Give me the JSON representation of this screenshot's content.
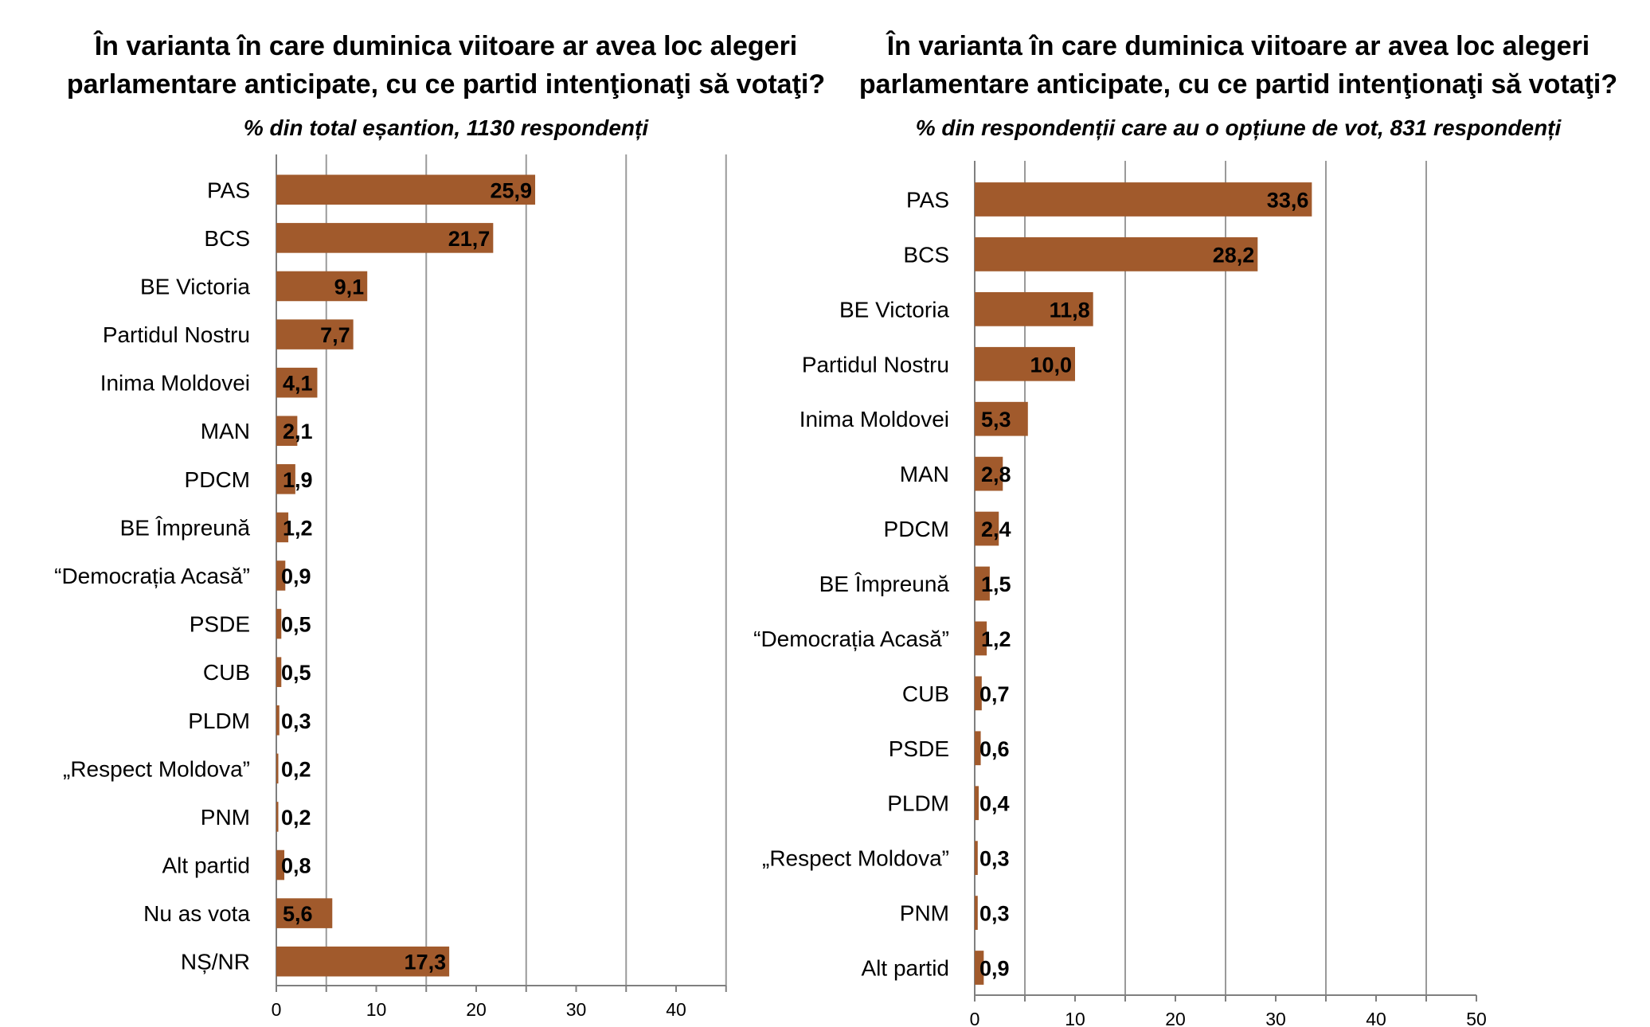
{
  "chart_data": [
    {
      "type": "bar",
      "orientation": "horizontal",
      "title": "În varianta în care duminica viitoare ar avea loc alegeri\nparlamentare anticipate, cu ce partid intenţionaţi să votaţi?",
      "subtitle": "% din total eșantion, 1130 respondenți",
      "categories": [
        "PAS",
        "BCS",
        "BE Victoria",
        "Partidul Nostru",
        "Inima Moldovei",
        "MAN",
        "PDCM",
        "BE Împreună",
        "“Democrația Acasă”",
        "PSDE",
        "CUB",
        "PLDM",
        "„Respect Moldova”",
        "PNM",
        "Alt partid",
        "Nu as vota",
        "NȘ/NR"
      ],
      "values": [
        25.9,
        21.7,
        9.1,
        7.7,
        4.1,
        2.1,
        1.9,
        1.2,
        0.9,
        0.5,
        0.5,
        0.3,
        0.2,
        0.2,
        0.8,
        5.6,
        17.3
      ],
      "value_labels": [
        "25,9",
        "21,7",
        "9,1",
        "7,7",
        "4,1",
        "2,1",
        "1,9",
        "1,2",
        "0,9",
        "0,5",
        "0,5",
        "0,3",
        "0,2",
        "0,2",
        "0,8",
        "5,6",
        "17,3"
      ],
      "xlim": [
        0,
        45
      ],
      "ticks": [
        0,
        10,
        20,
        30,
        40
      ],
      "gridlines": [
        5,
        15,
        25,
        35,
        45
      ],
      "grid": true,
      "bar_color": "#A15A2C"
    },
    {
      "type": "bar",
      "orientation": "horizontal",
      "title": "În varianta în care duminica viitoare ar avea loc alegeri\nparlamentare anticipate, cu ce partid intenţionaţi să votaţi?",
      "subtitle": "% din respondenții care au o opțiune de vot, 831 respondenți",
      "categories": [
        "PAS",
        "BCS",
        "BE Victoria",
        "Partidul Nostru",
        "Inima Moldovei",
        "MAN",
        "PDCM",
        "BE Împreună",
        "“Democrația Acasă”",
        "CUB",
        "PSDE",
        "PLDM",
        "„Respect Moldova”",
        "PNM",
        "Alt partid"
      ],
      "values": [
        33.6,
        28.2,
        11.8,
        10.0,
        5.3,
        2.8,
        2.4,
        1.5,
        1.2,
        0.7,
        0.6,
        0.4,
        0.3,
        0.3,
        0.9
      ],
      "value_labels": [
        "33,6",
        "28,2",
        "11,8",
        "10,0",
        "5,3",
        "2,8",
        "2,4",
        "1,5",
        "1,2",
        "0,7",
        "0,6",
        "0,4",
        "0,3",
        "0,3",
        "0,9"
      ],
      "xlim": [
        0,
        50
      ],
      "ticks": [
        0,
        10,
        20,
        30,
        40,
        50
      ],
      "gridlines": [
        5,
        15,
        25,
        35,
        45
      ],
      "grid": true,
      "bar_color": "#A15A2C"
    }
  ]
}
